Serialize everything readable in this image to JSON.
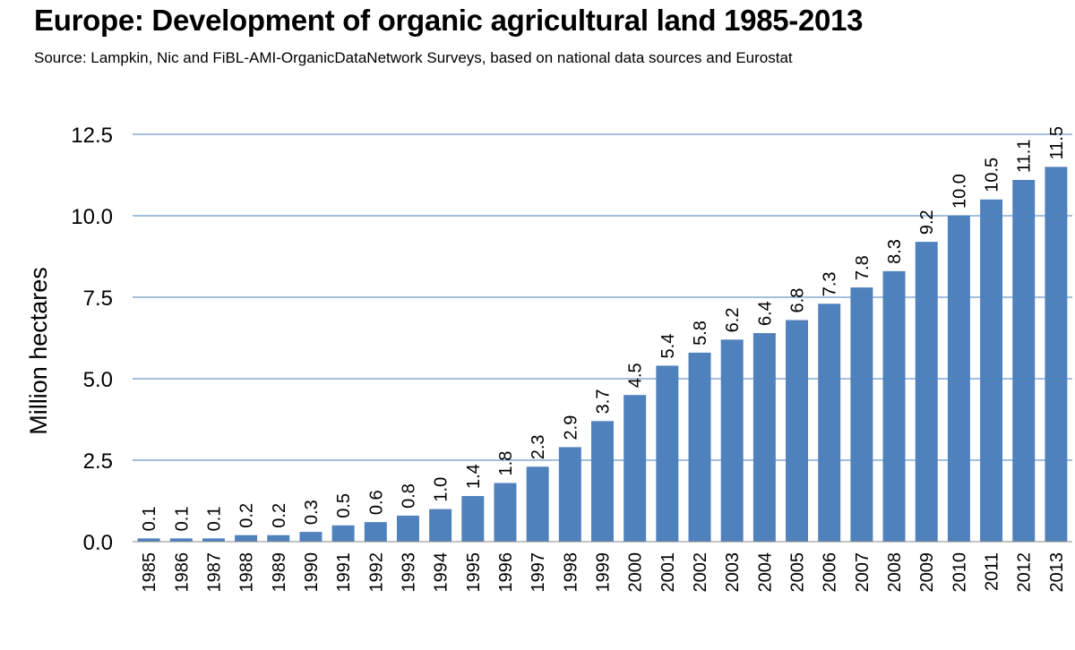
{
  "chart_data": {
    "type": "bar",
    "title": "Europe: Development of organic agricultural land 1985-2013",
    "subtitle": "Source: Lampkin, Nic and FiBL-AMI-OrganicDataNetwork Surveys, based on national data sources and Eurostat",
    "xlabel": "",
    "ylabel": "Million hectares",
    "ylim": [
      0,
      12.5
    ],
    "yticks": [
      "0.0",
      "2.5",
      "5.0",
      "7.5",
      "10.0",
      "12.5"
    ],
    "grid": true,
    "bar_color": "#4F81BD",
    "categories": [
      "1985",
      "1986",
      "1987",
      "1988",
      "1989",
      "1990",
      "1991",
      "1992",
      "1993",
      "1994",
      "1995",
      "1996",
      "1997",
      "1998",
      "1999",
      "2000",
      "2001",
      "2002",
      "2003",
      "2004",
      "2005",
      "2006",
      "2007",
      "2008",
      "2009",
      "2010",
      "2011",
      "2012",
      "2013"
    ],
    "values": [
      0.1,
      0.1,
      0.1,
      0.2,
      0.2,
      0.3,
      0.5,
      0.6,
      0.8,
      1.0,
      1.4,
      1.8,
      2.3,
      2.9,
      3.7,
      4.5,
      5.4,
      5.8,
      6.2,
      6.4,
      6.8,
      7.3,
      7.8,
      8.3,
      9.2,
      10.0,
      10.5,
      11.1,
      11.5
    ],
    "data_labels": [
      "0.1",
      "0.1",
      "0.1",
      "0.2",
      "0.2",
      "0.3",
      "0.5",
      "0.6",
      "0.8",
      "1.0",
      "1.4",
      "1.8",
      "2.3",
      "2.9",
      "3.7",
      "4.5",
      "5.4",
      "5.8",
      "6.2",
      "6.4",
      "6.8",
      "7.3",
      "7.8",
      "8.3",
      "9.2",
      "10.0",
      "10.5",
      "11.1",
      "11.5"
    ]
  }
}
